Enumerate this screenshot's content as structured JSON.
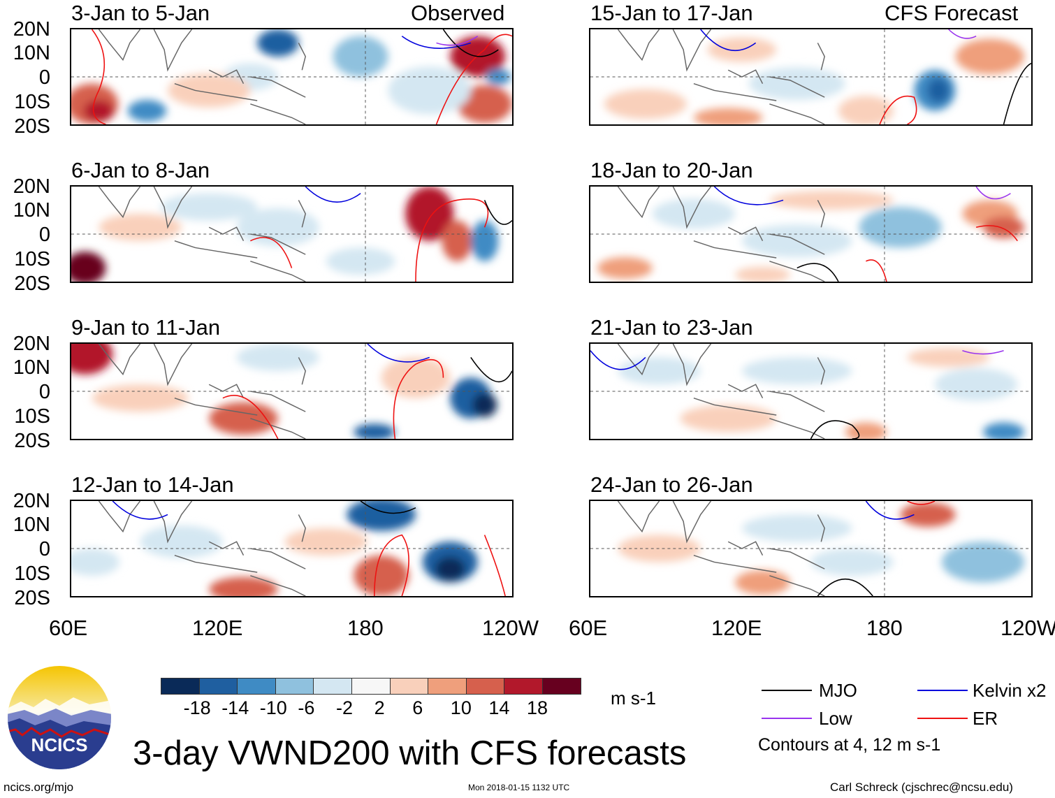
{
  "header": {
    "observed_label": "Observed",
    "forecast_label": "CFS Forecast"
  },
  "panels_observed": [
    {
      "title": "3-Jan to 5-Jan"
    },
    {
      "title": "6-Jan to 8-Jan"
    },
    {
      "title": "9-Jan to 11-Jan"
    },
    {
      "title": "12-Jan to 14-Jan"
    }
  ],
  "panels_forecast": [
    {
      "title": "15-Jan to 17-Jan"
    },
    {
      "title": "18-Jan to 20-Jan"
    },
    {
      "title": "21-Jan to 23-Jan"
    },
    {
      "title": "24-Jan to 26-Jan"
    }
  ],
  "lat_labels": [
    "20N",
    "10N",
    "0",
    "10S",
    "20S"
  ],
  "lon_labels": [
    "60E",
    "120E",
    "180",
    "120W"
  ],
  "colorbar": {
    "ticks": [
      "-18",
      "-14",
      "-10",
      "-6",
      "-2",
      "2",
      "6",
      "10",
      "14",
      "18"
    ],
    "colors": [
      "#0a2a58",
      "#1f5fa0",
      "#3f8bc4",
      "#8fc1de",
      "#d4e7f2",
      "#f7f7f7",
      "#f9d0bb",
      "#ef9f7c",
      "#d6604d",
      "#b2182b",
      "#67001f"
    ],
    "units": "m s-1"
  },
  "legend": {
    "mjo": "MJO",
    "kelvin": "Kelvin x2",
    "low": "Low",
    "er": "ER",
    "note": "Contours at 4, 12 m s-1",
    "colors": {
      "mjo": "#000000",
      "kelvin": "#0000dd",
      "low": "#9933ee",
      "er": "#ee1111"
    }
  },
  "logo": {
    "text": "NCICS"
  },
  "title": "3-day VWND200 with CFS forecasts",
  "footer": {
    "url": "ncics.org/mjo",
    "timestamp": "Mon 2018-01-15 1132 UTC",
    "author": "Carl Schreck (cjschrec@ncsu.edu)"
  }
}
